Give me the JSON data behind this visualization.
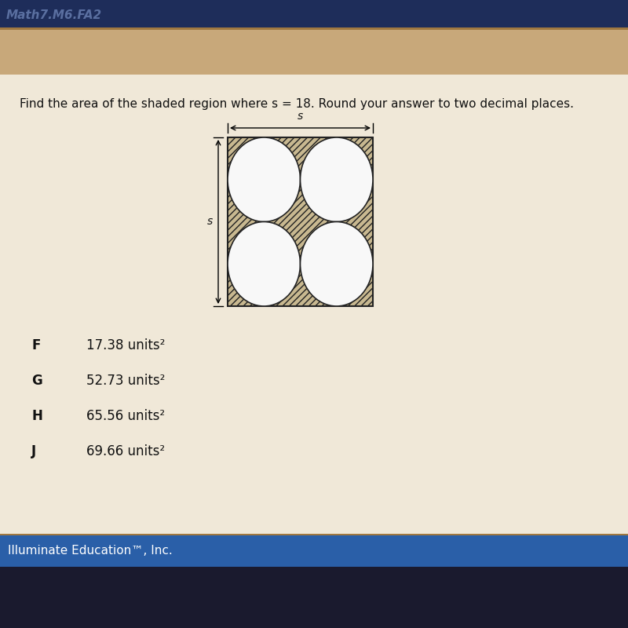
{
  "title_text": "Find the area of the shaded region where s = 18. Round your answer to two decimal places.",
  "header_text": "Math7.M6.FA2",
  "header_bg": "#1e2d5a",
  "header_text_color": "#5a6fa0",
  "page_bg": "#c8a87a",
  "content_bg": "#dfc9a8",
  "white_card_bg": "#f0e8d8",
  "s_label": "s",
  "choices": [
    {
      "label": "F",
      "text": "17.38 units²"
    },
    {
      "label": "G",
      "text": "52.73 units²"
    },
    {
      "label": "H",
      "text": "65.56 units²"
    },
    {
      "label": "J",
      "text": "69.66 units²"
    }
  ],
  "footer_text": "Illuminate Education™, Inc.",
  "footer_bg": "#2a5fa8",
  "footer_text_color": "#ffffff",
  "taskbar_bg": "#1a1a2e",
  "hatch_color": "#333333",
  "circle_color": "#f8f8f8",
  "square_border": "#222222",
  "line_sep_color": "#b8860b"
}
